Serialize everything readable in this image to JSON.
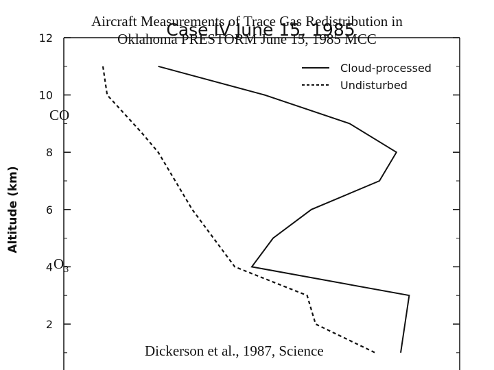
{
  "title_lines": [
    "Aircraft Measurements of Trace Gas Redistribution in",
    "Oklahoma PRESTORM June 15, 1985 MCC"
  ],
  "labels": {
    "co": "CO",
    "o3_base": "O",
    "o3_sub": "3",
    "citation": "Dickerson et al., 1987, Science"
  },
  "chart_data": {
    "type": "line",
    "title": "Case IV  June 15, 1985",
    "ylabel": "Altitude (km)",
    "xlabel": "",
    "ylim": [
      1,
      12
    ],
    "yticks": [
      2,
      4,
      6,
      8,
      10,
      12
    ],
    "grid": false,
    "legend_placement": "top-right",
    "series": [
      {
        "name": "Cloud-processed",
        "style": "solid",
        "x": [
          0.13,
          0.38,
          0.58,
          0.69,
          0.65,
          0.49,
          0.4,
          0.35,
          0.72,
          0.71,
          0.7
        ],
        "y": [
          11.0,
          10.0,
          9.0,
          8.0,
          7.0,
          6.0,
          5.0,
          4.0,
          3.0,
          2.0,
          1.0
        ]
      },
      {
        "name": "Undisturbed",
        "style": "dashed",
        "x": [
          0.0,
          0.01,
          0.09,
          0.13,
          0.17,
          0.21,
          0.26,
          0.31,
          0.48,
          0.5,
          0.64
        ],
        "y": [
          11.0,
          10.0,
          8.7,
          8.0,
          7.0,
          6.0,
          5.0,
          4.0,
          3.0,
          2.0,
          1.0
        ]
      }
    ]
  },
  "colors": {
    "ink": "#111111",
    "background": "#ffffff"
  }
}
